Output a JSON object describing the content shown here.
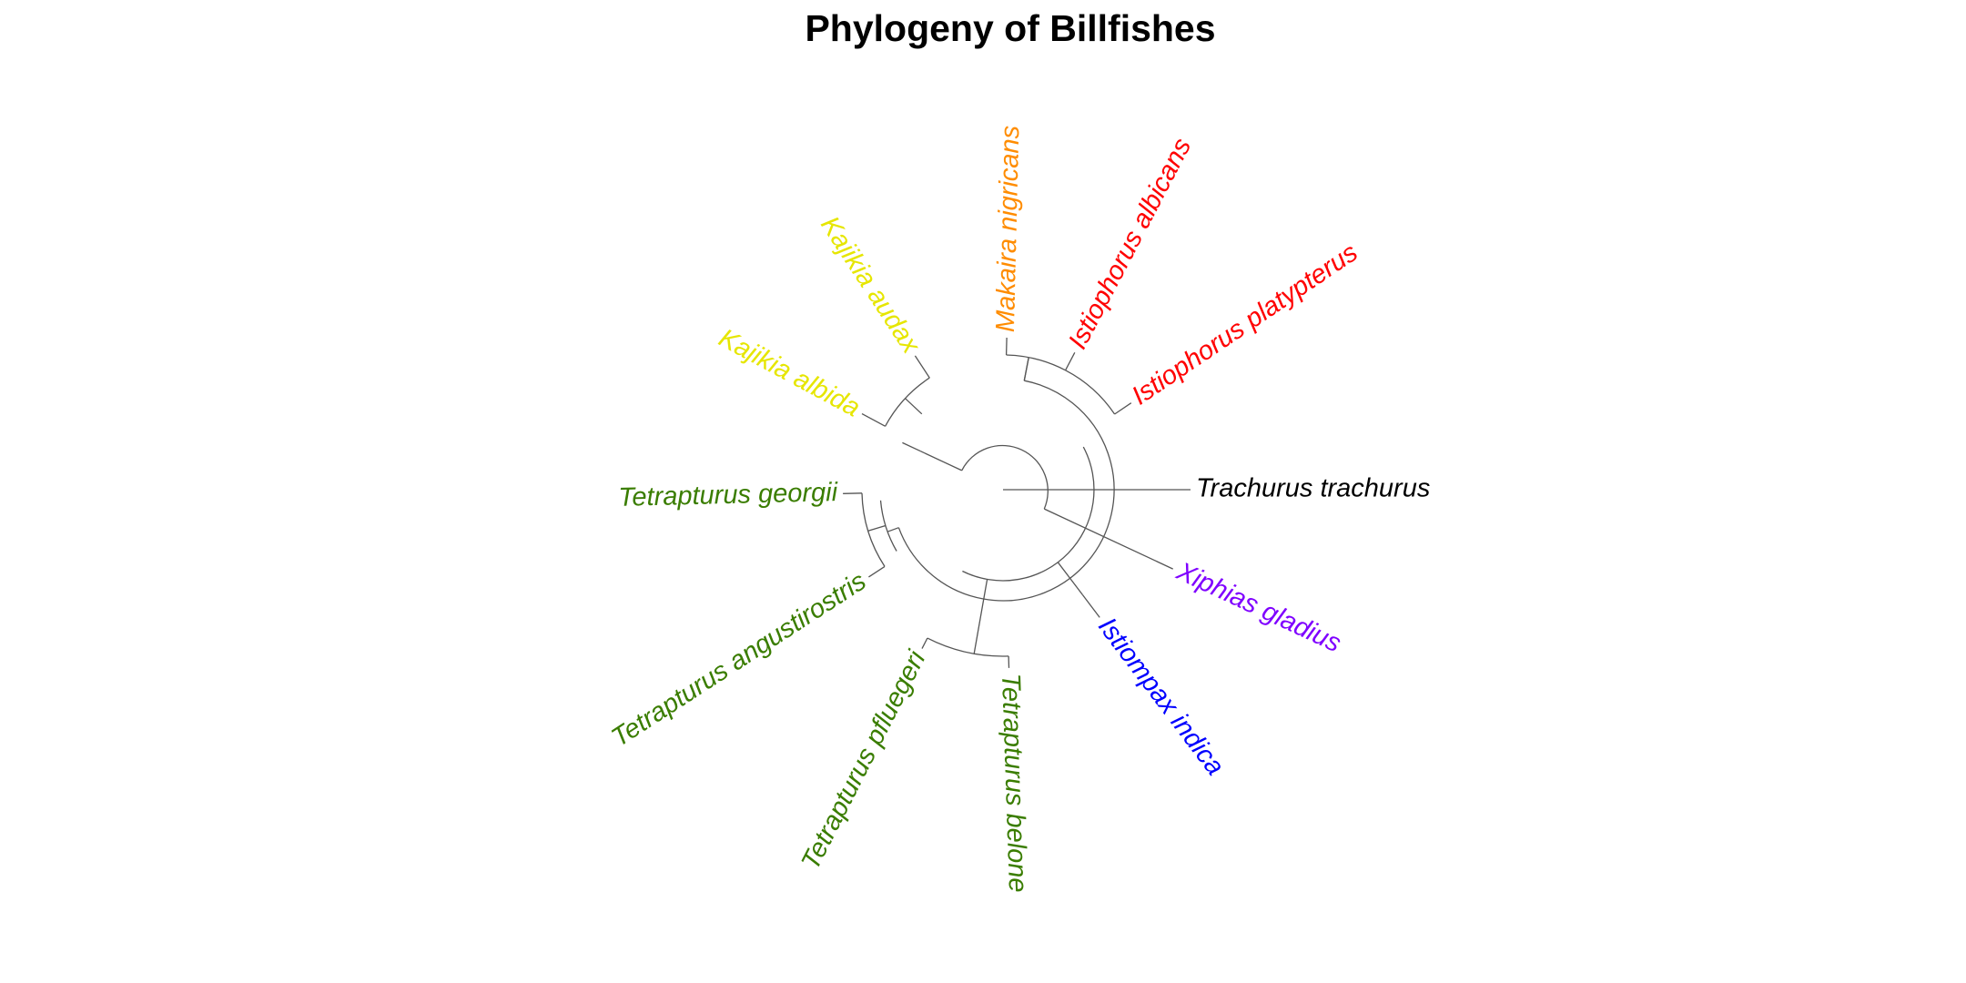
{
  "title": "Phylogeny of Billfishes",
  "tips": [
    {
      "name": "Trachurus trachurus",
      "color": "#000000"
    },
    {
      "name": "Xiphias gladius",
      "color": "#7F00FF"
    },
    {
      "name": "Istiompax indica",
      "color": "#0000FF"
    },
    {
      "name": "Tetrapturus belone",
      "color": "#3A7D00"
    },
    {
      "name": "Tetrapturus pfluegeri",
      "color": "#3A7D00"
    },
    {
      "name": "Tetrapturus angustirostris",
      "color": "#3A7D00"
    },
    {
      "name": "Tetrapturus georgii",
      "color": "#3A7D00"
    },
    {
      "name": "Kajikia albida",
      "color": "#E6E600"
    },
    {
      "name": "Kajikia audax",
      "color": "#E6E600"
    },
    {
      "name": "Makaira nigricans",
      "color": "#FF8C00"
    },
    {
      "name": "Istiophorus albicans",
      "color": "#FF0000"
    },
    {
      "name": "Istiophorus platypterus",
      "color": "#FF0000"
    }
  ]
}
